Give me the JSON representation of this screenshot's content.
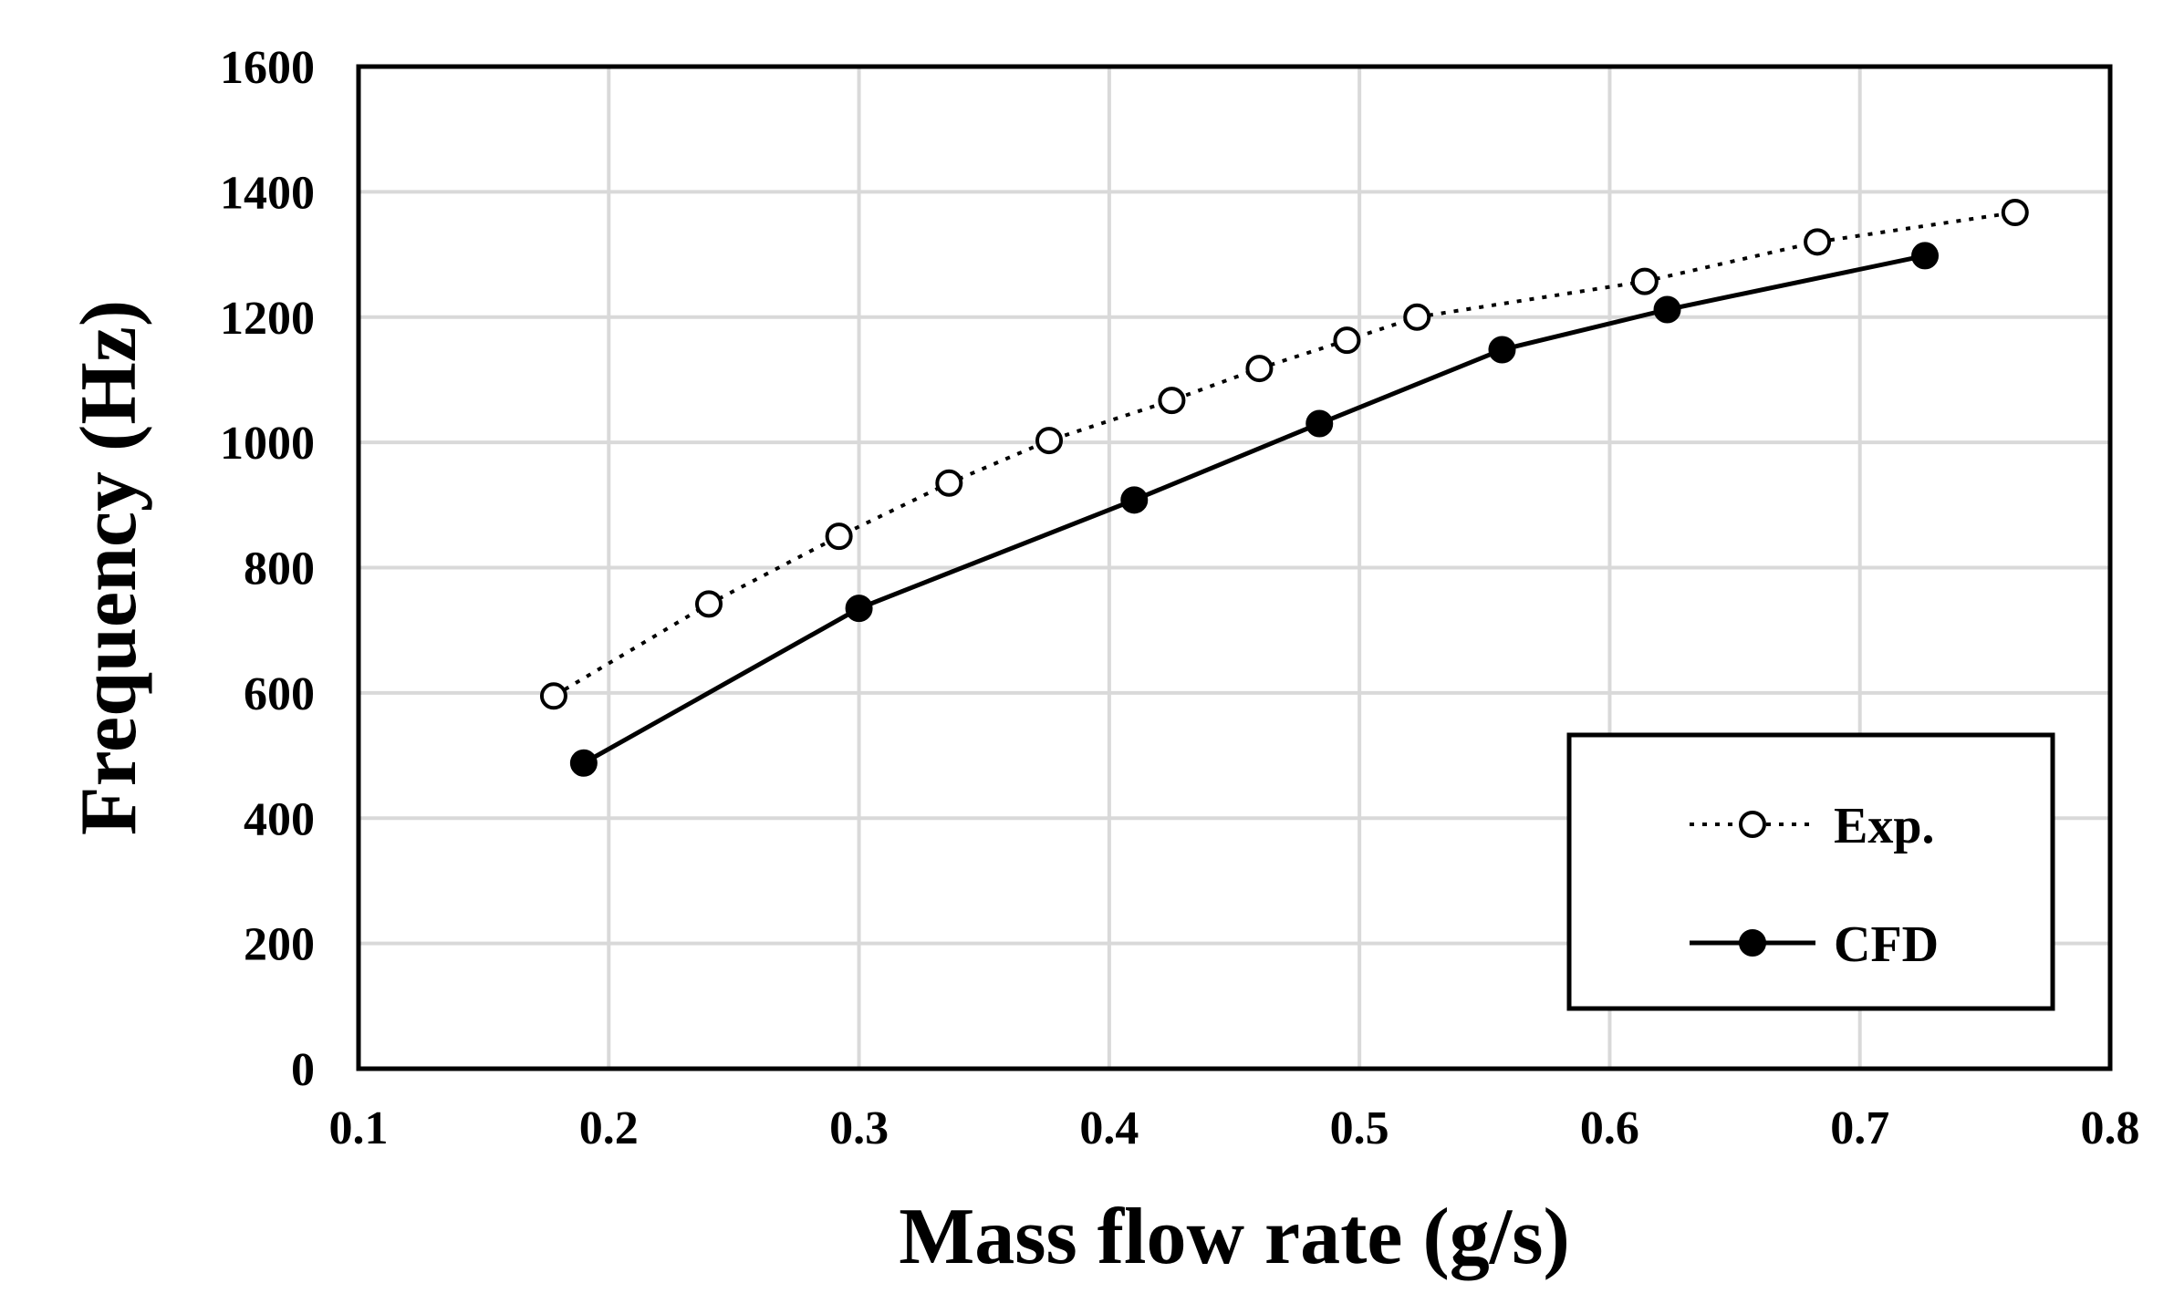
{
  "chart_data": {
    "type": "line",
    "title": "",
    "xlabel": "Mass flow rate (g/s)",
    "ylabel": "Frequency (Hz)",
    "xlim": [
      0.1,
      0.8
    ],
    "ylim": [
      0,
      1600
    ],
    "xticks": [
      "0.1",
      "0.2",
      "0.3",
      "0.4",
      "0.5",
      "0.6",
      "0.7",
      "0.8"
    ],
    "yticks": [
      "0",
      "200",
      "400",
      "600",
      "800",
      "1000",
      "1200",
      "1400",
      "1600"
    ],
    "grid": true,
    "legend_position": "bottom-right",
    "series": [
      {
        "name": "Exp.",
        "style": "dotted",
        "marker": "open-circle",
        "x": [
          0.178,
          0.24,
          0.292,
          0.336,
          0.376,
          0.425,
          0.46,
          0.495,
          0.523,
          0.614,
          0.683,
          0.762
        ],
        "y": [
          595,
          742,
          850,
          935,
          1003,
          1067,
          1118,
          1163,
          1200,
          1257,
          1320,
          1367
        ]
      },
      {
        "name": "CFD",
        "style": "solid",
        "marker": "filled-circle",
        "x": [
          0.19,
          0.3,
          0.41,
          0.484,
          0.557,
          0.623,
          0.726
        ],
        "y": [
          488,
          735,
          908,
          1030,
          1148,
          1212,
          1298
        ]
      }
    ],
    "colors": {
      "line": "#000000",
      "grid": "#d9d9d9",
      "background": "#ffffff"
    }
  }
}
